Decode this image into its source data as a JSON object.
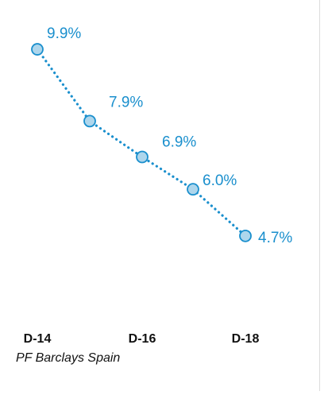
{
  "chart_data": {
    "type": "line",
    "categories": [
      "D-14",
      "",
      "D-16",
      "",
      "D-18"
    ],
    "values": [
      9.9,
      7.9,
      6.9,
      6.0,
      4.7
    ],
    "data_labels": [
      "9.9%",
      "7.9%",
      "6.9%",
      "6.0%",
      "4.7%"
    ],
    "tick_labels": [
      "D-14",
      "D-16",
      "D-18"
    ],
    "series": [
      {
        "values": [
          9.9,
          7.9,
          6.9,
          6.0,
          4.7
        ]
      }
    ],
    "ylim": [
      3.7,
      10.3
    ],
    "grid": false,
    "legend": "none",
    "line_style": "dotted",
    "marker": "circle",
    "colors": {
      "line": "#1a8fcd",
      "marker_fill": "#aed6ec",
      "marker_stroke": "#1a8fcd",
      "label": "#1a8fcd",
      "axis_text": "#111111"
    }
  },
  "caption": "PF Barclays Spain"
}
